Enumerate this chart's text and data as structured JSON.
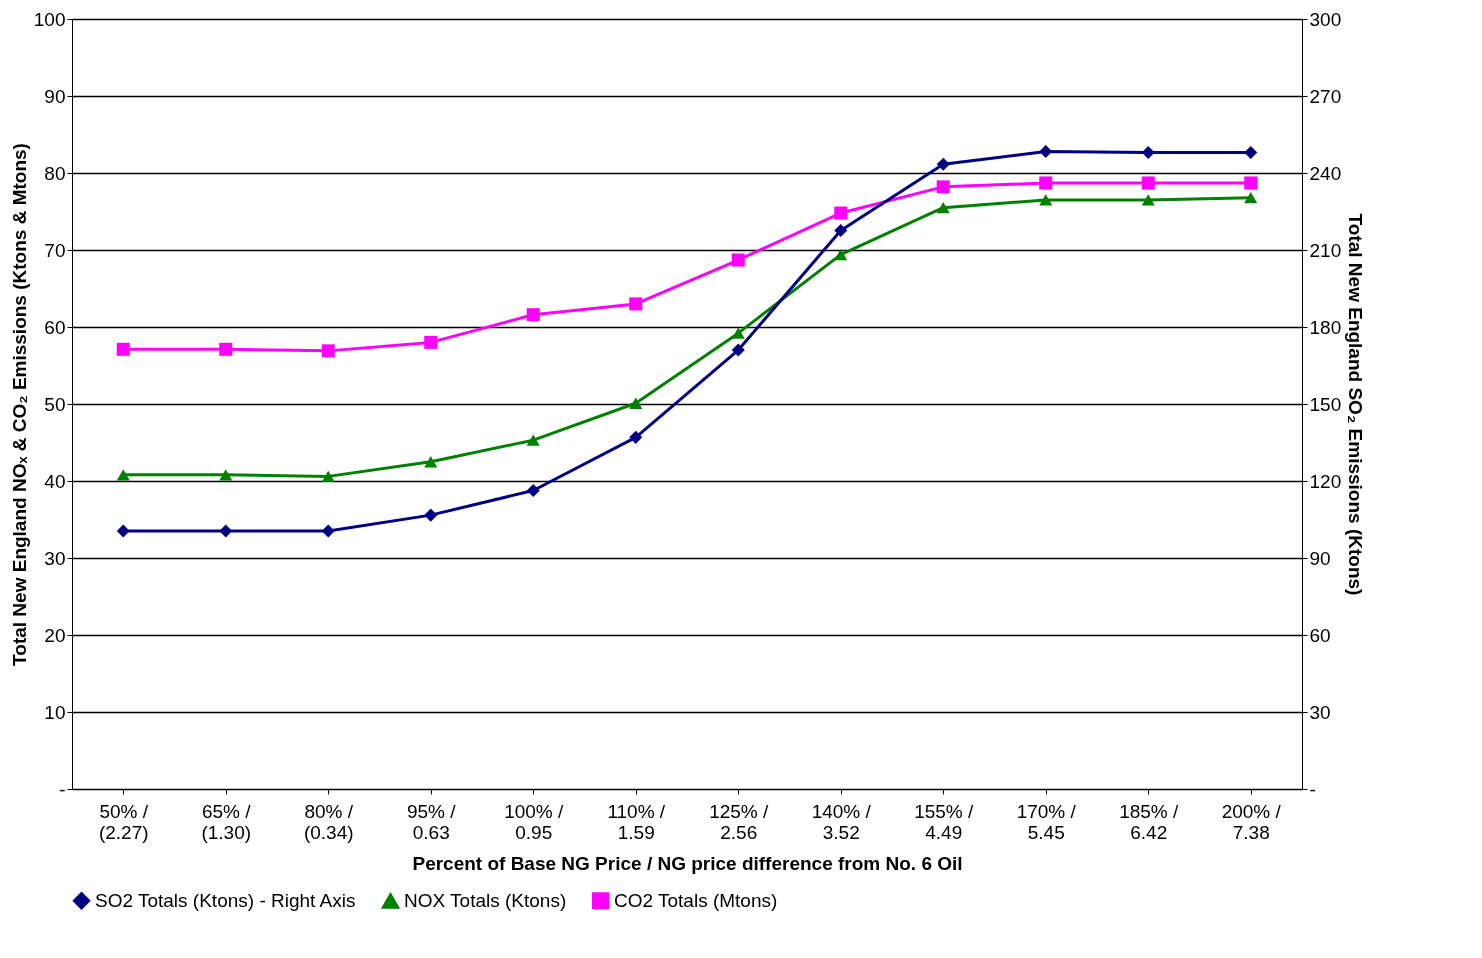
{
  "chart_data": {
    "type": "line",
    "xlabel": "Percent of Base NG Price / NG price difference from No. 6 Oil",
    "ylabel": "Total New England NOₓ & CO₂ Emissions (Ktons & Mtons)",
    "y2label": "Total New England SO₂ Emissions (Ktons)",
    "categories": [
      "50% / (2.27)",
      "65% / (1.30)",
      "80% / (0.34)",
      "95% / 0.63",
      "100% / 0.95",
      "110% / 1.59",
      "125% / 2.56",
      "140% / 3.52",
      "155% / 4.49",
      "170% / 5.45",
      "185% / 6.42",
      "200% / 7.38"
    ],
    "series": [
      {
        "name": "SO2 Totals (Ktons) - Right Axis",
        "color": "#000080",
        "axis": "y2",
        "marker": "diamond",
        "values": [
          100.5,
          100.5,
          100.5,
          106.7,
          116.3,
          137,
          171,
          217.6,
          243.4,
          248.4,
          248,
          248
        ]
      },
      {
        "name": "NOX Totals (Ktons)",
        "color": "#008000",
        "marker": "triangle",
        "values": [
          40.8,
          40.8,
          40.6,
          42.5,
          45.3,
          50.1,
          59.2,
          69.4,
          75.5,
          76.5,
          76.5,
          76.8
        ]
      },
      {
        "name": "CO2 Totals (Mtons)",
        "color": "#ff00ff",
        "marker": "square",
        "values": [
          57.1,
          57.1,
          56.9,
          58.0,
          61.6,
          63.0,
          68.7,
          74.8,
          78.2,
          78.7,
          78.7,
          78.7
        ]
      }
    ],
    "ylim": [
      0,
      100
    ],
    "yticks": [
      {
        "value": 0,
        "label": "-"
      },
      10,
      20,
      30,
      40,
      50,
      60,
      70,
      80,
      90,
      100
    ],
    "y2lim": [
      0,
      300
    ],
    "y2ticks": [
      {
        "value": 0,
        "label": "-"
      },
      30,
      60,
      90,
      120,
      150,
      180,
      210,
      240,
      270,
      300
    ],
    "grid": "y",
    "legend": "bottom",
    "line_style": "solid"
  }
}
